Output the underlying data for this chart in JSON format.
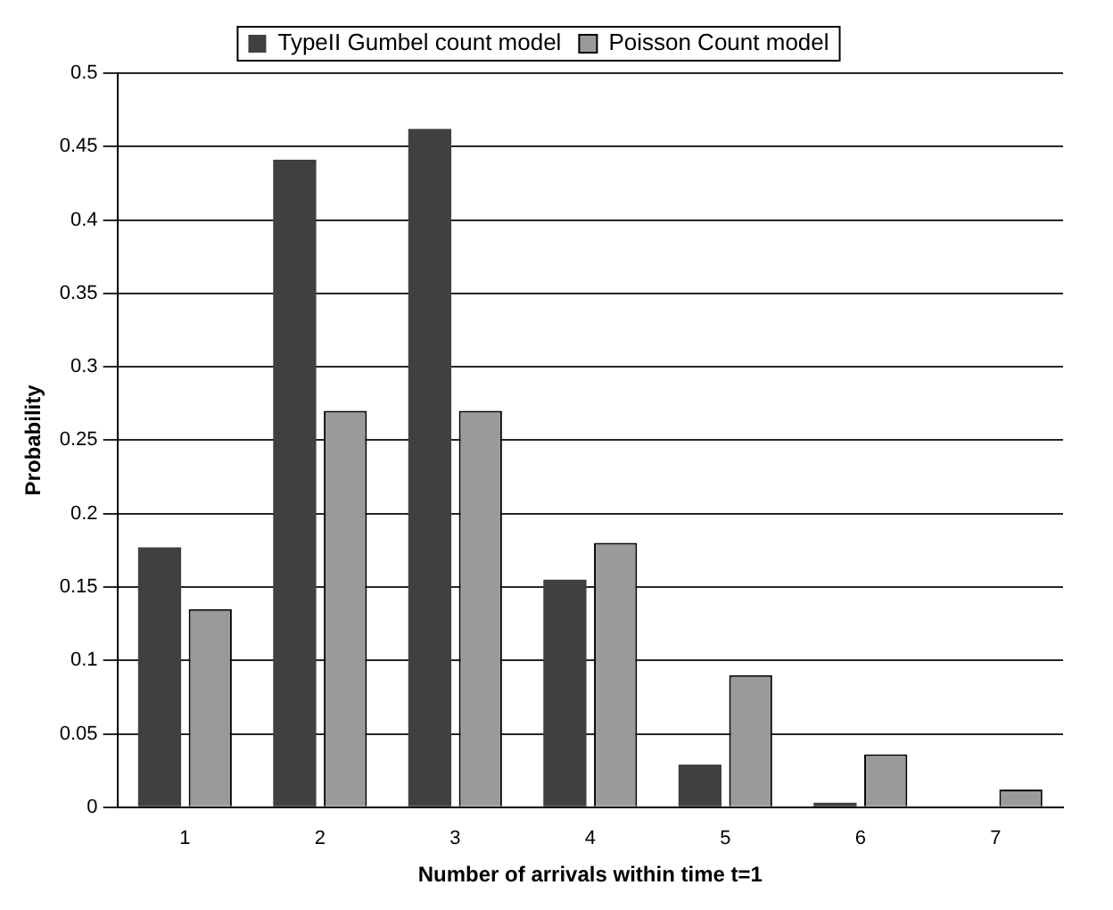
{
  "chart_data": {
    "type": "bar",
    "xlabel": "Number of arrivals within time t=1",
    "ylabel": "Probability",
    "categories": [
      "1",
      "2",
      "3",
      "4",
      "5",
      "6",
      "7"
    ],
    "series": [
      {
        "name": "TypeII Gumbel count model",
        "color": "#404040",
        "values": [
          0.177,
          0.441,
          0.462,
          0.155,
          0.029,
          0.003,
          0
        ]
      },
      {
        "name": "Poisson Count model",
        "color": "#9a9a9a",
        "values": [
          0.135,
          0.27,
          0.27,
          0.18,
          0.09,
          0.036,
          0.012
        ]
      }
    ],
    "ylim": [
      0,
      0.5
    ],
    "yticks": [
      0,
      0.05,
      0.1,
      0.15,
      0.2,
      0.25,
      0.3,
      0.35,
      0.4,
      0.45,
      0.5
    ],
    "grid": "y",
    "legend": "top"
  }
}
